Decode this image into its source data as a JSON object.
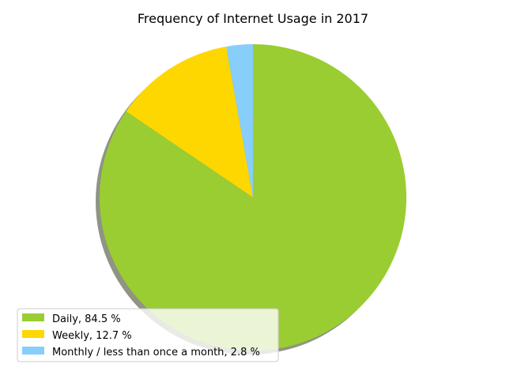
{
  "chart_data": {
    "type": "pie",
    "title": "Frequency of Internet Usage in 2017",
    "categories": [
      "Daily",
      "Weekly",
      "Monthly / less than once a month"
    ],
    "values": [
      84.5,
      12.7,
      2.8
    ],
    "colors": [
      "#9acd32",
      "#ffd700",
      "#87cefa"
    ],
    "legend": {
      "entries": [
        "Daily, 84.5 %",
        "Weekly, 12.7 %",
        "Monthly / less than once a month, 2.8 %"
      ],
      "placement": "lower-left"
    },
    "start_angle_deg": 90,
    "direction": "clockwise",
    "shadow": true
  }
}
